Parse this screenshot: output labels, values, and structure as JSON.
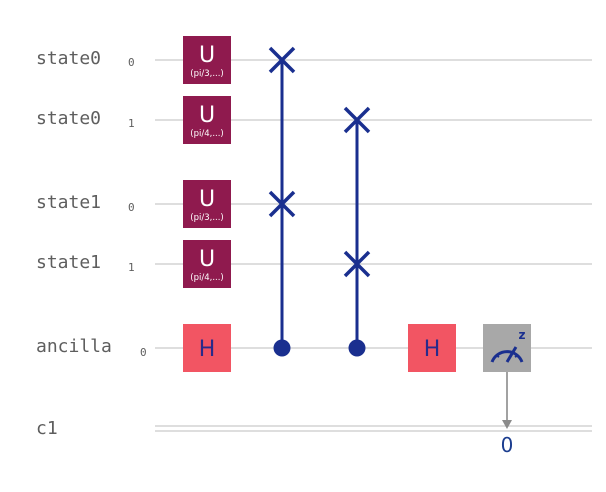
{
  "colors": {
    "u_gate": "#8f1a4e",
    "h_gate": "#f25563",
    "swap": "#1a2f8f",
    "measure": "#a8a8a8",
    "wire": "#d4d4d4",
    "label": "#5e5e5e"
  },
  "qubits": [
    {
      "name": "state0",
      "index": "0"
    },
    {
      "name": "state0",
      "index": "1"
    },
    {
      "name": "state1",
      "index": "0"
    },
    {
      "name": "state1",
      "index": "1"
    },
    {
      "name": "ancilla",
      "index": "0"
    }
  ],
  "classical": {
    "name": "c1"
  },
  "gates": {
    "u": [
      {
        "label": "U",
        "param": "(pi/3,...)"
      },
      {
        "label": "U",
        "param": "(pi/4,...)"
      },
      {
        "label": "U",
        "param": "(pi/3,...)"
      },
      {
        "label": "U",
        "param": "(pi/4,...)"
      }
    ],
    "h": [
      {
        "label": "H"
      },
      {
        "label": "H"
      }
    ],
    "measure": {
      "icon": "measure-z-icon",
      "superscript": "z",
      "target_bit": "0"
    }
  },
  "controlled_swaps": [
    {
      "targets": [
        "state0 0",
        "state1 0"
      ],
      "control": "ancilla 0"
    },
    {
      "targets": [
        "state0 1",
        "state1 1"
      ],
      "control": "ancilla 0"
    }
  ]
}
